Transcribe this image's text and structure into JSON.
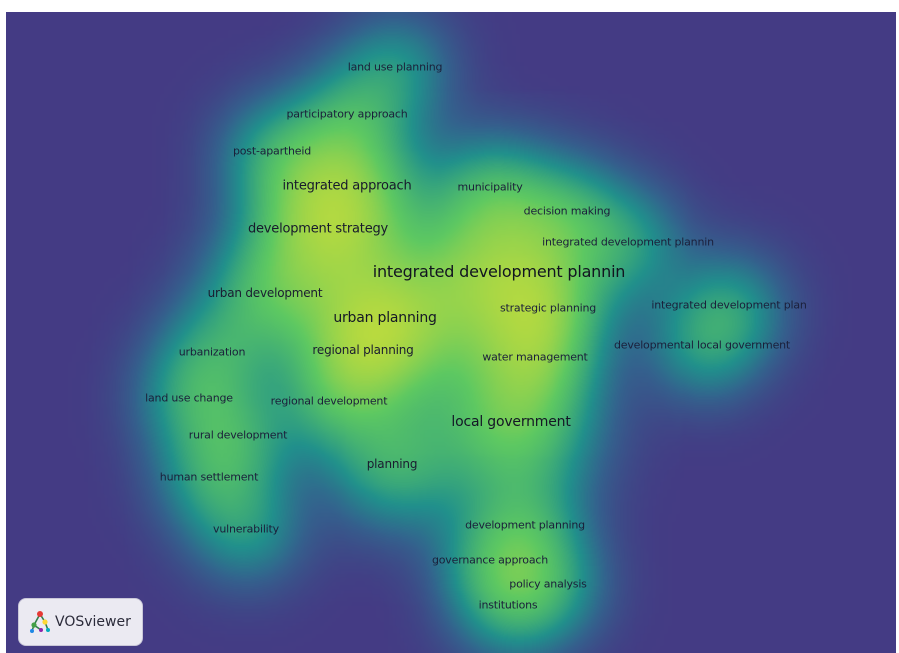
{
  "view": "density visualization",
  "colors": {
    "background": "#443b84",
    "low": "#35608d",
    "mid": "#21918c",
    "high": "#5ec962",
    "peak": "#fde725"
  },
  "terms": [
    {
      "id": "land-use-planning",
      "label": "land use planning",
      "weight": 2
    },
    {
      "id": "participatory-approach",
      "label": "participatory approach",
      "weight": 2
    },
    {
      "id": "post-apartheid",
      "label": "post-apartheid",
      "weight": 2
    },
    {
      "id": "integrated-approach",
      "label": "integrated approach",
      "weight": 4
    },
    {
      "id": "municipality",
      "label": "municipality",
      "weight": 2
    },
    {
      "id": "decision-making",
      "label": "decision making",
      "weight": 2
    },
    {
      "id": "development-strategy",
      "label": "development strategy",
      "weight": 4
    },
    {
      "id": "integrated-development-plannin-2",
      "label": "integrated development plannin",
      "weight": 2
    },
    {
      "id": "integrated-development-plannin",
      "label": "integrated development plannin",
      "weight": 6
    },
    {
      "id": "urban-development",
      "label": "urban development",
      "weight": 3
    },
    {
      "id": "urban-planning",
      "label": "urban planning",
      "weight": 5
    },
    {
      "id": "strategic-planning",
      "label": "strategic planning",
      "weight": 2
    },
    {
      "id": "integrated-development-plan",
      "label": "integrated development plan",
      "weight": 2
    },
    {
      "id": "urbanization",
      "label": "urbanization",
      "weight": 2
    },
    {
      "id": "regional-planning",
      "label": "regional planning",
      "weight": 3
    },
    {
      "id": "water-management",
      "label": "water management",
      "weight": 2
    },
    {
      "id": "developmental-local-government",
      "label": "developmental local government",
      "weight": 2
    },
    {
      "id": "land-use-change",
      "label": "land use change",
      "weight": 2
    },
    {
      "id": "regional-development",
      "label": "regional development",
      "weight": 2
    },
    {
      "id": "local-government",
      "label": "local government",
      "weight": 5
    },
    {
      "id": "rural-development",
      "label": "rural development",
      "weight": 2
    },
    {
      "id": "planning",
      "label": "planning",
      "weight": 3
    },
    {
      "id": "human-settlement",
      "label": "human settlement",
      "weight": 2
    },
    {
      "id": "vulnerability",
      "label": "vulnerability",
      "weight": 2
    },
    {
      "id": "development-planning",
      "label": "development planning",
      "weight": 2
    },
    {
      "id": "governance-approach",
      "label": "governance approach",
      "weight": 2
    },
    {
      "id": "policy-analysis",
      "label": "policy analysis",
      "weight": 2
    },
    {
      "id": "institutions",
      "label": "institutions",
      "weight": 2
    }
  ],
  "logo": {
    "text": "VOSviewer",
    "icon": "vosviewer-logo-icon"
  }
}
